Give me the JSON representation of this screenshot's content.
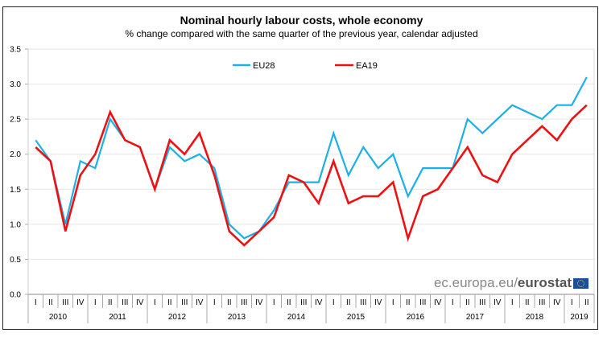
{
  "title": "Nominal hourly labour costs, whole economy",
  "subtitle": "% change compared with the same quarter of the previous year, calendar adjusted",
  "credit": {
    "domain": "ec.europa.eu/",
    "brand": "eurostat"
  },
  "colors": {
    "EU28": "#1cb0e8",
    "EA19": "#ee1111",
    "grid": "#e6e6e6"
  },
  "chart_data": {
    "type": "line",
    "title": "Nominal hourly labour costs, whole economy",
    "subtitle": "% change compared with the same quarter of the previous year, calendar adjusted",
    "xlabel": "",
    "ylabel": "",
    "ylim": [
      0,
      3.5
    ],
    "yticks": [
      "0.0",
      "0.5",
      "1.0",
      "1.5",
      "2.0",
      "2.5",
      "3.0",
      "3.5"
    ],
    "grid": true,
    "legend": "top-center",
    "quarters": [
      "I",
      "II",
      "III",
      "IV",
      "I",
      "II",
      "III",
      "IV",
      "I",
      "II",
      "III",
      "IV",
      "I",
      "II",
      "III",
      "IV",
      "I",
      "II",
      "III",
      "IV",
      "I",
      "II",
      "III",
      "IV",
      "I",
      "II",
      "III",
      "IV",
      "I",
      "II",
      "III",
      "IV",
      "I",
      "II",
      "III",
      "IV",
      "I",
      "II"
    ],
    "years": [
      {
        "label": "2010",
        "quarters": 4
      },
      {
        "label": "2011",
        "quarters": 4
      },
      {
        "label": "2012",
        "quarters": 4
      },
      {
        "label": "2013",
        "quarters": 4
      },
      {
        "label": "2014",
        "quarters": 4
      },
      {
        "label": "2015",
        "quarters": 4
      },
      {
        "label": "2016",
        "quarters": 4
      },
      {
        "label": "2017",
        "quarters": 4
      },
      {
        "label": "2018",
        "quarters": 4
      },
      {
        "label": "2019",
        "quarters": 2
      }
    ],
    "series": [
      {
        "name": "EU28",
        "values": [
          2.2,
          1.9,
          1.0,
          1.9,
          1.8,
          2.5,
          2.2,
          2.1,
          1.5,
          2.1,
          1.9,
          2.0,
          1.8,
          1.0,
          0.8,
          0.9,
          1.2,
          1.6,
          1.6,
          1.6,
          2.3,
          1.7,
          2.1,
          1.8,
          2.0,
          1.4,
          1.8,
          1.8,
          1.8,
          2.5,
          2.3,
          2.5,
          2.7,
          2.6,
          2.5,
          2.7,
          2.7,
          3.1
        ]
      },
      {
        "name": "EA19",
        "values": [
          2.1,
          1.9,
          0.9,
          1.7,
          2.0,
          2.6,
          2.2,
          2.1,
          1.5,
          2.2,
          2.0,
          2.3,
          1.7,
          0.9,
          0.7,
          0.9,
          1.1,
          1.7,
          1.6,
          1.3,
          1.9,
          1.3,
          1.4,
          1.4,
          1.6,
          0.8,
          1.4,
          1.5,
          1.8,
          2.1,
          1.7,
          1.6,
          2.0,
          2.2,
          2.4,
          2.2,
          2.5,
          2.7
        ]
      }
    ]
  }
}
